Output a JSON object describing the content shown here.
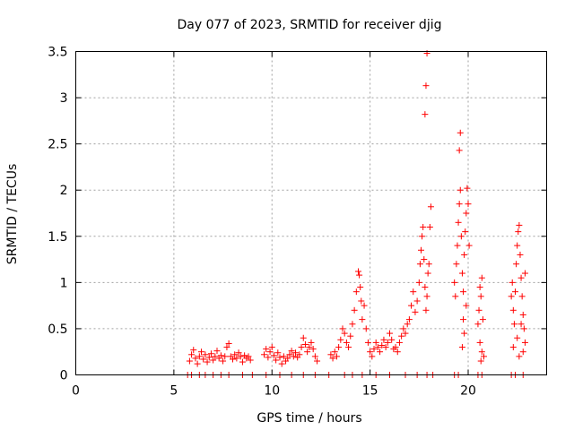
{
  "chart_data": {
    "type": "scatter",
    "title": "Day 077 of 2023, SRMTID for receiver djig",
    "xlabel": "GPS time / hours",
    "ylabel": "SRMTID / TECUs",
    "xlim": [
      0,
      24
    ],
    "ylim": [
      0,
      3.5
    ],
    "x_ticks": [
      0,
      5,
      10,
      15,
      20
    ],
    "y_ticks": [
      0,
      0.5,
      1,
      1.5,
      2,
      2.5,
      3,
      3.5
    ],
    "x_tick_labels": [
      "0",
      "5",
      "10",
      "15",
      "20"
    ],
    "y_tick_labels": [
      "0",
      "0.5",
      "1",
      "1.5",
      "2",
      "2.5",
      "3",
      "3.5"
    ],
    "grid": true,
    "marker": "+",
    "series": [
      {
        "name": "SRMTID",
        "color": "#ff0000",
        "points": [
          [
            5.7,
            0.0
          ],
          [
            5.9,
            0.0
          ],
          [
            6.3,
            0.0
          ],
          [
            6.6,
            0.0
          ],
          [
            7.0,
            0.0
          ],
          [
            7.4,
            0.0
          ],
          [
            7.8,
            0.0
          ],
          [
            8.5,
            0.0
          ],
          [
            9.0,
            0.0
          ],
          [
            9.7,
            0.0
          ],
          [
            10.4,
            0.0
          ],
          [
            11.0,
            0.0
          ],
          [
            11.6,
            0.0
          ],
          [
            12.2,
            0.0
          ],
          [
            12.9,
            0.0
          ],
          [
            13.7,
            0.0
          ],
          [
            14.1,
            0.0
          ],
          [
            14.6,
            0.0
          ],
          [
            15.3,
            0.0
          ],
          [
            16.0,
            0.0
          ],
          [
            16.8,
            0.0
          ],
          [
            17.4,
            0.0
          ],
          [
            17.9,
            0.0
          ],
          [
            18.2,
            0.0
          ],
          [
            19.3,
            0.0
          ],
          [
            19.5,
            0.0
          ],
          [
            20.5,
            0.0
          ],
          [
            20.7,
            0.0
          ],
          [
            22.2,
            0.0
          ],
          [
            22.4,
            0.0
          ],
          [
            22.8,
            0.0
          ],
          [
            5.8,
            0.15
          ],
          [
            5.9,
            0.22
          ],
          [
            6.0,
            0.27
          ],
          [
            6.1,
            0.18
          ],
          [
            6.2,
            0.12
          ],
          [
            6.3,
            0.2
          ],
          [
            6.4,
            0.25
          ],
          [
            6.5,
            0.17
          ],
          [
            6.6,
            0.22
          ],
          [
            6.7,
            0.14
          ],
          [
            6.8,
            0.19
          ],
          [
            6.9,
            0.23
          ],
          [
            7.0,
            0.16
          ],
          [
            7.1,
            0.2
          ],
          [
            7.2,
            0.26
          ],
          [
            7.3,
            0.18
          ],
          [
            7.4,
            0.21
          ],
          [
            7.5,
            0.15
          ],
          [
            7.6,
            0.2
          ],
          [
            7.7,
            0.3
          ],
          [
            7.8,
            0.34
          ],
          [
            7.9,
            0.2
          ],
          [
            8.0,
            0.17
          ],
          [
            8.1,
            0.22
          ],
          [
            8.2,
            0.18
          ],
          [
            8.3,
            0.24
          ],
          [
            8.4,
            0.2
          ],
          [
            8.5,
            0.14
          ],
          [
            8.6,
            0.21
          ],
          [
            8.7,
            0.18
          ],
          [
            8.8,
            0.2
          ],
          [
            8.9,
            0.16
          ],
          [
            9.6,
            0.22
          ],
          [
            9.7,
            0.28
          ],
          [
            9.8,
            0.19
          ],
          [
            9.9,
            0.25
          ],
          [
            10.0,
            0.3
          ],
          [
            10.1,
            0.21
          ],
          [
            10.2,
            0.16
          ],
          [
            10.3,
            0.24
          ],
          [
            10.4,
            0.19
          ],
          [
            10.5,
            0.12
          ],
          [
            10.6,
            0.2
          ],
          [
            10.7,
            0.15
          ],
          [
            10.8,
            0.18
          ],
          [
            10.9,
            0.22
          ],
          [
            11.0,
            0.26
          ],
          [
            11.1,
            0.2
          ],
          [
            11.2,
            0.24
          ],
          [
            11.3,
            0.19
          ],
          [
            11.4,
            0.22
          ],
          [
            11.5,
            0.3
          ],
          [
            11.6,
            0.4
          ],
          [
            11.7,
            0.33
          ],
          [
            11.8,
            0.25
          ],
          [
            11.9,
            0.3
          ],
          [
            12.0,
            0.35
          ],
          [
            12.1,
            0.28
          ],
          [
            12.2,
            0.2
          ],
          [
            12.3,
            0.15
          ],
          [
            13.0,
            0.22
          ],
          [
            13.1,
            0.18
          ],
          [
            13.2,
            0.25
          ],
          [
            13.3,
            0.2
          ],
          [
            13.4,
            0.3
          ],
          [
            13.5,
            0.38
          ],
          [
            13.6,
            0.5
          ],
          [
            13.7,
            0.45
          ],
          [
            13.8,
            0.35
          ],
          [
            13.9,
            0.3
          ],
          [
            14.0,
            0.42
          ],
          [
            14.1,
            0.55
          ],
          [
            14.2,
            0.7
          ],
          [
            14.3,
            0.9
          ],
          [
            14.4,
            1.12
          ],
          [
            14.45,
            1.08
          ],
          [
            14.5,
            0.95
          ],
          [
            14.55,
            0.8
          ],
          [
            14.6,
            0.6
          ],
          [
            14.7,
            0.75
          ],
          [
            14.8,
            0.5
          ],
          [
            14.9,
            0.35
          ],
          [
            15.0,
            0.25
          ],
          [
            15.1,
            0.2
          ],
          [
            15.2,
            0.28
          ],
          [
            15.3,
            0.35
          ],
          [
            15.4,
            0.3
          ],
          [
            15.5,
            0.25
          ],
          [
            15.6,
            0.32
          ],
          [
            15.7,
            0.38
          ],
          [
            15.8,
            0.3
          ],
          [
            15.9,
            0.35
          ],
          [
            16.0,
            0.45
          ],
          [
            16.1,
            0.38
          ],
          [
            16.2,
            0.28
          ],
          [
            16.3,
            0.3
          ],
          [
            16.4,
            0.25
          ],
          [
            16.5,
            0.35
          ],
          [
            16.6,
            0.42
          ],
          [
            16.7,
            0.5
          ],
          [
            16.8,
            0.45
          ],
          [
            16.9,
            0.55
          ],
          [
            17.0,
            0.6
          ],
          [
            17.1,
            0.75
          ],
          [
            17.2,
            0.9
          ],
          [
            17.3,
            0.68
          ],
          [
            17.4,
            0.8
          ],
          [
            17.5,
            1.0
          ],
          [
            17.55,
            1.2
          ],
          [
            17.6,
            1.35
          ],
          [
            17.65,
            1.5
          ],
          [
            17.7,
            1.6
          ],
          [
            17.75,
            1.25
          ],
          [
            17.8,
            0.95
          ],
          [
            17.85,
            0.7
          ],
          [
            17.9,
            0.85
          ],
          [
            17.95,
            1.1
          ],
          [
            18.0,
            1.2
          ],
          [
            18.05,
            1.6
          ],
          [
            18.1,
            1.82
          ],
          [
            17.8,
            2.82
          ],
          [
            17.85,
            3.13
          ],
          [
            17.9,
            3.48
          ],
          [
            19.3,
            1.0
          ],
          [
            19.35,
            0.85
          ],
          [
            19.4,
            1.2
          ],
          [
            19.45,
            1.4
          ],
          [
            19.5,
            1.65
          ],
          [
            19.55,
            1.85
          ],
          [
            19.6,
            2.0
          ],
          [
            19.55,
            2.43
          ],
          [
            19.6,
            2.62
          ],
          [
            19.65,
            1.5
          ],
          [
            19.7,
            1.1
          ],
          [
            19.75,
            0.9
          ],
          [
            19.8,
            1.3
          ],
          [
            19.85,
            1.55
          ],
          [
            19.9,
            1.75
          ],
          [
            19.95,
            2.02
          ],
          [
            20.0,
            1.85
          ],
          [
            20.05,
            1.4
          ],
          [
            19.75,
            0.6
          ],
          [
            19.8,
            0.45
          ],
          [
            19.7,
            0.3
          ],
          [
            19.9,
            0.75
          ],
          [
            20.5,
            0.55
          ],
          [
            20.55,
            0.7
          ],
          [
            20.6,
            0.95
          ],
          [
            20.65,
            0.85
          ],
          [
            20.7,
            1.05
          ],
          [
            20.75,
            0.6
          ],
          [
            20.6,
            0.35
          ],
          [
            20.7,
            0.25
          ],
          [
            20.8,
            0.2
          ],
          [
            20.65,
            0.15
          ],
          [
            22.2,
            0.85
          ],
          [
            22.25,
            1.0
          ],
          [
            22.3,
            0.7
          ],
          [
            22.35,
            0.55
          ],
          [
            22.4,
            0.9
          ],
          [
            22.45,
            1.2
          ],
          [
            22.5,
            1.4
          ],
          [
            22.55,
            1.55
          ],
          [
            22.6,
            1.62
          ],
          [
            22.65,
            1.3
          ],
          [
            22.7,
            1.05
          ],
          [
            22.75,
            0.85
          ],
          [
            22.8,
            0.65
          ],
          [
            22.85,
            0.5
          ],
          [
            22.9,
            0.35
          ],
          [
            22.3,
            0.3
          ],
          [
            22.5,
            0.4
          ],
          [
            22.7,
            0.55
          ],
          [
            22.6,
            0.2
          ],
          [
            22.8,
            0.25
          ],
          [
            22.9,
            1.1
          ]
        ]
      }
    ]
  }
}
